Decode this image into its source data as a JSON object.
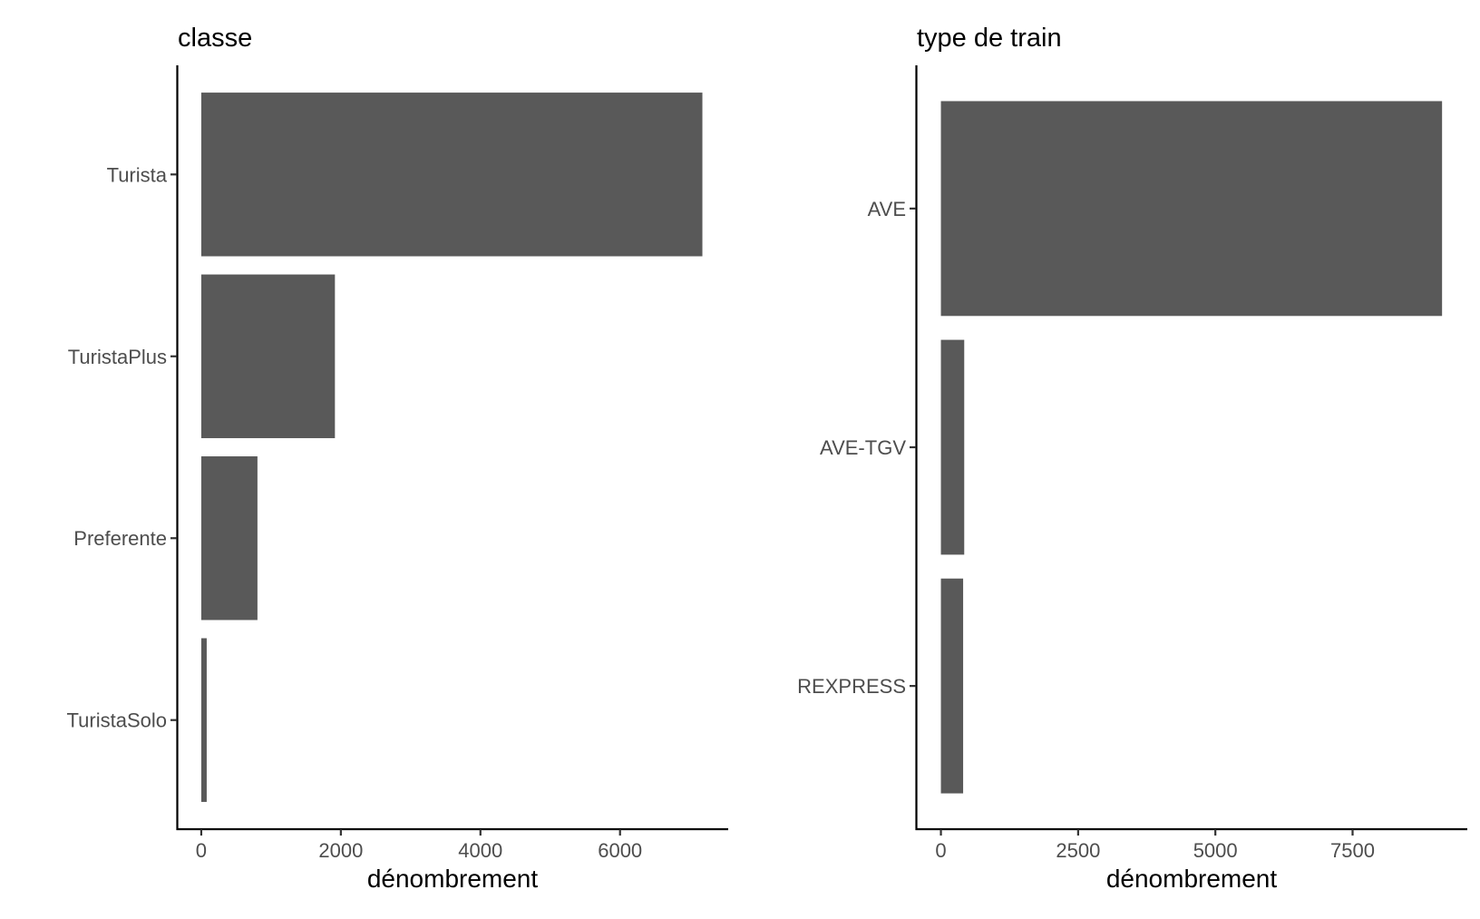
{
  "chart_data": [
    {
      "type": "bar",
      "orientation": "horizontal",
      "title": "classe",
      "xlabel": "dénombrement",
      "ylabel": "",
      "categories": [
        "Turista",
        "TuristaPlus",
        "Preferente",
        "TuristaSolo"
      ],
      "values": [
        7180,
        1915,
        805,
        78
      ],
      "xlim": [
        -350,
        7550
      ],
      "xticks": [
        0,
        2000,
        4000,
        6000
      ],
      "xtick_labels": [
        "0",
        "2000",
        "4000",
        "6000"
      ],
      "bar_color": "#595959",
      "grid": false,
      "legend": "none"
    },
    {
      "type": "bar",
      "orientation": "horizontal",
      "title": "type de train",
      "xlabel": "dénombrement",
      "ylabel": "",
      "categories": [
        "AVE",
        "AVE-TGV",
        "REXPRESS"
      ],
      "values": [
        9130,
        425,
        405
      ],
      "xlim": [
        -455,
        9590
      ],
      "xticks": [
        0,
        2500,
        5000,
        7500
      ],
      "xtick_labels": [
        "0",
        "2500",
        "5000",
        "7500"
      ],
      "bar_color": "#595959",
      "grid": false,
      "legend": "none"
    }
  ]
}
